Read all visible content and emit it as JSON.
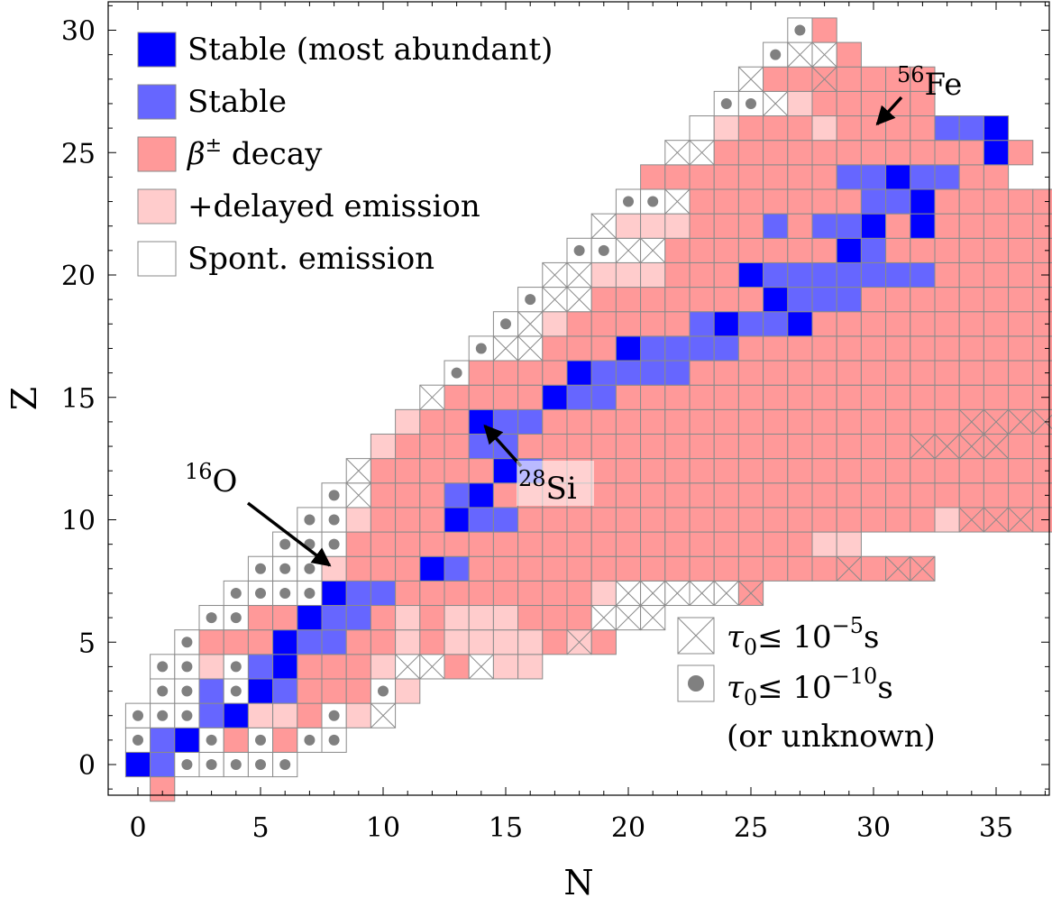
{
  "chart_data": {
    "type": "heatmap",
    "xlabel": "N",
    "ylabel": "Z",
    "xlim": [
      -0.5,
      37
    ],
    "ylim": [
      -1,
      31.3
    ],
    "xticks": [
      0,
      5,
      10,
      15,
      20,
      25,
      30,
      35
    ],
    "yticks": [
      0,
      5,
      10,
      15,
      20,
      25,
      30
    ],
    "categories": {
      "S": {
        "label": "Stable (most abundant)",
        "color": "#0000ff"
      },
      "s": {
        "label": "Stable",
        "color": "#6666ff"
      },
      "b": {
        "label": "β± decay",
        "color": "#ff9999"
      },
      "d": {
        "label": "+delayed emission",
        "color": "#ffcccc"
      },
      "w": {
        "label": "Spont. emission",
        "color": "#ffffff"
      }
    },
    "lifetime_markers": {
      "cross": "τ0 ≤ 10−5 s",
      "dot": "τ0 ≤ 10−10 s",
      "dot_note": "(or unknown)"
    },
    "annotations": [
      {
        "mass": "16",
        "symbol": "O",
        "N": 8,
        "Z": 8
      },
      {
        "mass": "28",
        "symbol": "Si",
        "N": 14,
        "Z": 14
      },
      {
        "mass": "56",
        "symbol": "Fe",
        "N": 30,
        "Z": 26
      }
    ],
    "rows": [
      {
        "Z": -1,
        "n0": 1,
        "cells": "b"
      },
      {
        "Z": 0,
        "n0": 0,
        "cells": "S s w. w. w. w. w."
      },
      {
        "Z": 1,
        "n0": 0,
        "cells": "w. s S w. b w. b w. w."
      },
      {
        "Z": 2,
        "n0": 0,
        "cells": "w. w. w. s S d d b w. d wx"
      },
      {
        "Z": 3,
        "n0": 1,
        "cells": "w. w. s w. S s b b b w. d"
      },
      {
        "Z": 4,
        "n0": 1,
        "cells": "w. w. d w. s S b b b d wx wx b wx d d"
      },
      {
        "Z": 5,
        "n0": 2,
        "cells": "w. b b b S s s b b d b d d d d b dx b"
      },
      {
        "Z": 6,
        "n0": 3,
        "cells": "w. w. b b S s s b d b d d d b b b wx wx wx"
      },
      {
        "Z": 7,
        "n0": 4,
        "cells": "w. w. w. w. S s s b b b b b b b b d wx wx wx wx wx bx"
      },
      {
        "Z": 8,
        "n0": 5,
        "cells": "w. w. w. d b b b S s b b b b b b b b b b b b b b b bx b bx bx"
      },
      {
        "Z": 9,
        "n0": 6,
        "cells": "w. w. w. b b b b b b b b b b b b b b b b b b b d d"
      },
      {
        "Z": 10,
        "n0": 7,
        "cells": "w. w. d b b b S s s b b b b b b b b b b b b b b b b b d bx bx bx b b b"
      },
      {
        "Z": 11,
        "n0": 8,
        "cells": "w. wx b b b s S b b b b b b b b b b b b b b b b b b b b b b b b b b"
      },
      {
        "Z": 12,
        "n0": 9,
        "cells": "wx b b b b b S s b b b b b b b b b b b b b b b b b b b b b b b b"
      },
      {
        "Z": 13,
        "n0": 10,
        "cells": "d b b b s s b b b b b b b b b b b b b b b b bx bx bx bx b b b b"
      },
      {
        "Z": 14,
        "n0": 11,
        "cells": "d b b S s s b b b b b b b b b b b b b b b b b bx bx bx bx b b b b"
      },
      {
        "Z": 15,
        "n0": 12,
        "cells": "wx b b b b S s s b b b b b b b b b b b b b b b b b b b b b bx b b b"
      },
      {
        "Z": 16,
        "n0": 13,
        "cells": "w. b b b b S s s s s b b b b b b b b b b b b b b b b b b b b b b b"
      },
      {
        "Z": 17,
        "n0": 14,
        "cells": "w. wx wx b b b S s s s s b b b b b b b b b b b b b b b b b b b b b b"
      },
      {
        "Z": 18,
        "n0": 15,
        "cells": "w. wx d b b b b b s S s s S b b b b b b b b b b b b b b b b b b b b b b b b b"
      },
      {
        "Z": 19,
        "n0": 16,
        "cells": "w. wx wx b b b b b b b S s s s b b b b b b b b b b b b b b b b b b b b"
      },
      {
        "Z": 20,
        "n0": 17,
        "cells": "wx wx d d d b b b S s s s s s s s b b b b b b b b b b b b bx b"
      },
      {
        "Z": 21,
        "n0": 18,
        "cells": "w. w. wx wx b b b b b b b S s b b b b b b b b b b b b b b"
      },
      {
        "Z": 22,
        "n0": 19,
        "cells": "wx d d d b b b s b s s S b S b b b b b b b"
      },
      {
        "Z": 23,
        "n0": 20,
        "cells": "w. w. wx b b b b b b b s s S b b b b b b"
      },
      {
        "Z": 24,
        "n0": 21,
        "cells": "b b b b b b b b s s S s s b b"
      },
      {
        "Z": 25,
        "n0": 22,
        "cells": "wx wx b b b b b b b b b b b S b"
      },
      {
        "Z": 26,
        "n0": 23,
        "cells": "w d b b b d b b b b s s S"
      },
      {
        "Z": 27,
        "n0": 24,
        "cells": "w. w. wx d b b b b b"
      },
      {
        "Z": 28,
        "n0": 25,
        "cells": "wx b b bx b b b b"
      },
      {
        "Z": 29,
        "n0": 26,
        "cells": "w. wx wx b"
      },
      {
        "Z": 30,
        "n0": 27,
        "cells": "w. b"
      }
    ]
  }
}
